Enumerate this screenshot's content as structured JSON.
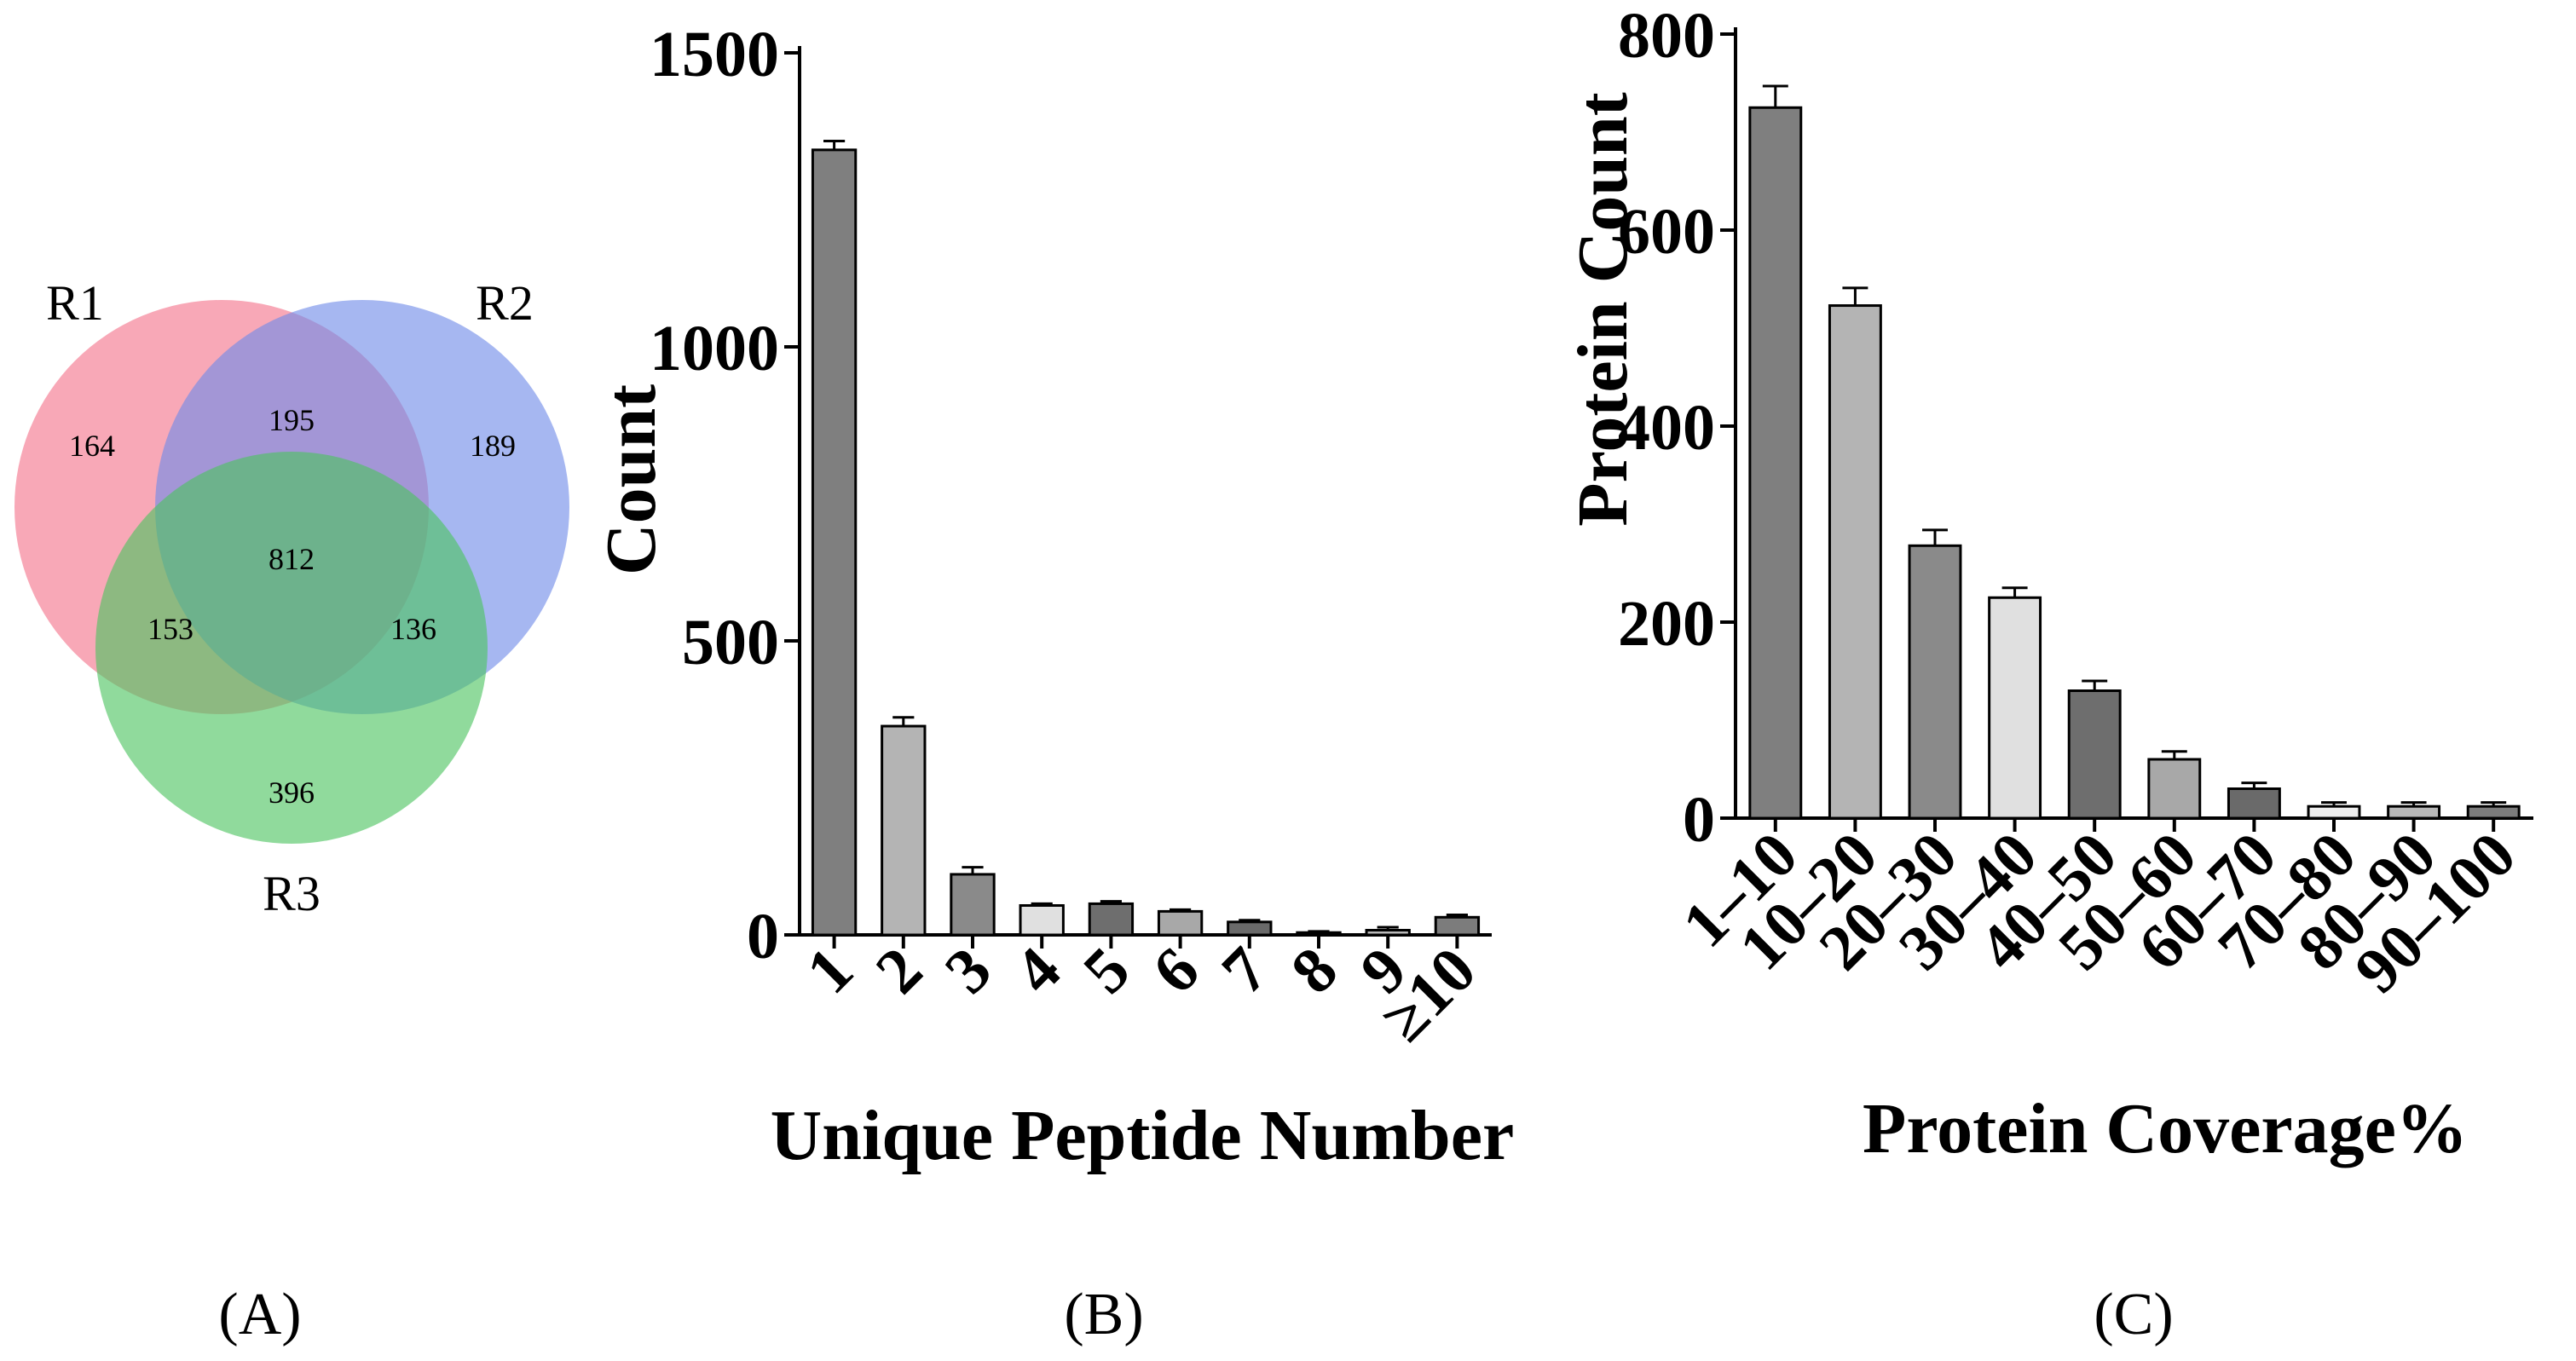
{
  "panels": {
    "A": "(A)",
    "B": "(B)",
    "C": "(C)"
  },
  "venn": {
    "sets": [
      {
        "name": "R1",
        "color": "#f4728a"
      },
      {
        "name": "R2",
        "color": "#6f8be8"
      },
      {
        "name": "R3",
        "color": "#4cc460"
      }
    ],
    "regions": {
      "r1_only": "164",
      "r2_only": "189",
      "r3_only": "396",
      "r1_r2": "195",
      "r1_r3": "153",
      "r2_r3": "136",
      "all": "812"
    }
  },
  "chart_data": [
    {
      "type": "bar",
      "panel": "B",
      "xlabel": "Unique Peptide Number",
      "ylabel": "Count",
      "ylim": [
        0,
        1500
      ],
      "yticks": [
        "0",
        "500",
        "1000",
        "1500"
      ],
      "categories": [
        "1",
        "2",
        "3",
        "4",
        "5",
        "6",
        "7",
        "8",
        "9",
        "≥10"
      ],
      "values": [
        1335,
        355,
        103,
        50,
        53,
        40,
        22,
        4,
        8,
        30
      ],
      "errors": [
        15,
        15,
        12,
        3,
        4,
        3,
        3,
        2,
        5,
        4
      ],
      "bar_colors": [
        "#7f7f7f",
        "#b4b4b4",
        "#8a8a8a",
        "#e0e0e0",
        "#6e6e6e",
        "#a8a8a8",
        "#6a6a6a",
        "#ededed",
        "#b8b8b8",
        "#7c7c7c"
      ]
    },
    {
      "type": "bar",
      "panel": "C",
      "xlabel": "Protein Coverage%",
      "ylabel": "Protein Count",
      "ylim": [
        0,
        800
      ],
      "yticks": [
        "0",
        "200",
        "400",
        "600",
        "800"
      ],
      "categories": [
        "1–10",
        "10–20",
        "20–30",
        "30–40",
        "40–50",
        "50–60",
        "60–70",
        "70–80",
        "80–90",
        "90–100"
      ],
      "values": [
        725,
        523,
        278,
        225,
        130,
        60,
        30,
        12,
        12,
        12
      ],
      "errors": [
        22,
        18,
        16,
        10,
        10,
        8,
        6,
        4,
        4,
        4
      ],
      "bar_colors": [
        "#7f7f7f",
        "#b4b4b4",
        "#8a8a8a",
        "#e0e0e0",
        "#6e6e6e",
        "#a8a8a8",
        "#6a6a6a",
        "#ededed",
        "#b8b8b8",
        "#7c7c7c"
      ]
    }
  ]
}
